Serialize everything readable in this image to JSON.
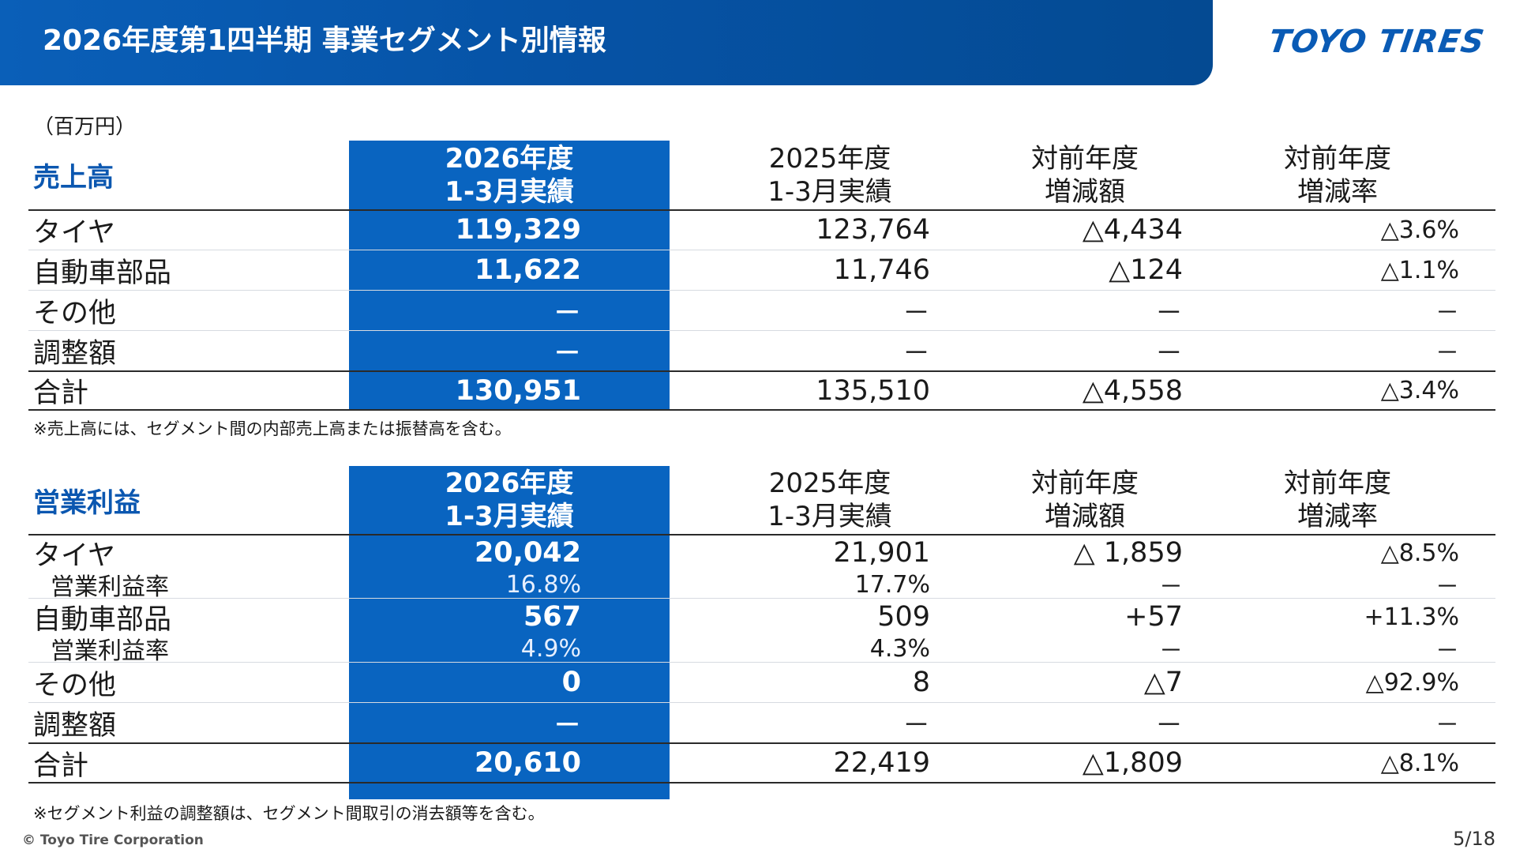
{
  "header": {
    "title": "2026年度第1四半期 事業セグメント別情報",
    "logo_text": "TOYO TIRES"
  },
  "unit_label": "（百万円）",
  "sales": {
    "title": "売上高",
    "col_cur_1": "2026年度",
    "col_cur_2": "1-3月実績",
    "col_prev_1": "2025年度",
    "col_prev_2": "1-3月実績",
    "col_diff_1": "対前年度",
    "col_diff_2": "増減額",
    "col_rate_1": "対前年度",
    "col_rate_2": "増減率",
    "rows": [
      {
        "label": "タイヤ",
        "cur": "119,329",
        "prev": "123,764",
        "diff": "△4,434",
        "rate": "△3.6%"
      },
      {
        "label": "自動車部品",
        "cur": "11,622",
        "prev": "11,746",
        "diff": "△124",
        "rate": "△1.1%"
      },
      {
        "label": "その他",
        "cur": "－",
        "prev": "－",
        "diff": "－",
        "rate": "－"
      },
      {
        "label": "調整額",
        "cur": "－",
        "prev": "－",
        "diff": "－",
        "rate": "－"
      },
      {
        "label": "合計",
        "cur": "130,951",
        "prev": "135,510",
        "diff": "△4,558",
        "rate": "△3.4%"
      }
    ],
    "note": "※売上高には、セグメント間の内部売上高または振替高を含む。"
  },
  "profit": {
    "title": "営業利益",
    "col_cur_1": "2026年度",
    "col_cur_2": "1-3月実績",
    "col_prev_1": "2025年度",
    "col_prev_2": "1-3月実績",
    "col_diff_1": "対前年度",
    "col_diff_2": "増減額",
    "col_rate_1": "対前年度",
    "col_rate_2": "増減率",
    "rows": [
      {
        "label": "タイヤ",
        "cur": "20,042",
        "prev": "21,901",
        "diff": "△ 1,859",
        "rate": "△8.5%"
      },
      {
        "label": "営業利益率",
        "cur": "16.8%",
        "prev": "17.7%",
        "diff": "－",
        "rate": "－"
      },
      {
        "label": "自動車部品",
        "cur": "567",
        "prev": "509",
        "diff": "+57",
        "rate": "+11.3%"
      },
      {
        "label": "営業利益率",
        "cur": "4.9%",
        "prev": "4.3%",
        "diff": "－",
        "rate": "－"
      },
      {
        "label": "その他",
        "cur": "0",
        "prev": "8",
        "diff": "△7",
        "rate": "△92.9%"
      },
      {
        "label": "調整額",
        "cur": "－",
        "prev": "－",
        "diff": "－",
        "rate": "－"
      },
      {
        "label": "合計",
        "cur": "20,610",
        "prev": "22,419",
        "diff": "△1,809",
        "rate": "△8.1%"
      }
    ],
    "note": "※セグメント利益の調整額は、セグメント間取引の消去額等を含む。"
  },
  "footer": {
    "copyright": "© Toyo Tire Corporation",
    "page": "5/18"
  }
}
